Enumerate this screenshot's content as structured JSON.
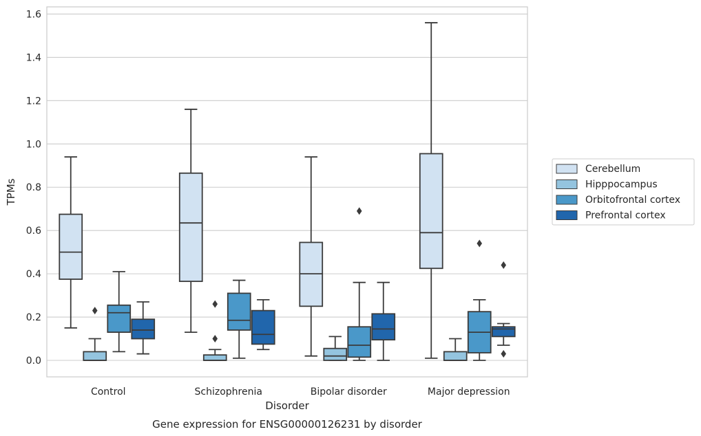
{
  "chart_data": {
    "type": "box",
    "xlabel": "Disorder",
    "ylabel": "TPMs",
    "caption": "Gene expression for ENSG00000126231 by disorder",
    "ylim": [
      -0.075,
      1.65
    ],
    "yticks": [
      0.0,
      0.2,
      0.4,
      0.6,
      0.8,
      1.0,
      1.2,
      1.4,
      1.6
    ],
    "ytick_labels": [
      "0.0",
      "0.2",
      "0.4",
      "0.6",
      "0.8",
      "1.0",
      "1.2",
      "1.4",
      "1.6"
    ],
    "grid": true,
    "legend_position": "right",
    "categories": [
      "Control",
      "Schizophrenia",
      "Bipolar disorder",
      "Major depression"
    ],
    "series": [
      {
        "name": "Cerebellum",
        "color": "#d1e2f2",
        "boxes": [
          {
            "min": 0.15,
            "q1": 0.375,
            "median": 0.5,
            "q3": 0.675,
            "max": 0.94,
            "outliers": []
          },
          {
            "min": 0.13,
            "q1": 0.365,
            "median": 0.635,
            "q3": 0.865,
            "max": 1.16,
            "outliers": []
          },
          {
            "min": 0.02,
            "q1": 0.25,
            "median": 0.4,
            "q3": 0.545,
            "max": 0.94,
            "outliers": []
          },
          {
            "min": 0.01,
            "q1": 0.425,
            "median": 0.59,
            "q3": 0.955,
            "max": 1.56,
            "outliers": []
          }
        ]
      },
      {
        "name": "Hipppocampus",
        "color": "#94c4df",
        "boxes": [
          {
            "min": 0.0,
            "q1": 0.0,
            "median": 0.0,
            "q3": 0.04,
            "max": 0.1,
            "outliers": [
              0.23
            ]
          },
          {
            "min": 0.0,
            "q1": 0.0,
            "median": 0.0,
            "q3": 0.025,
            "max": 0.05,
            "outliers": [
              0.1,
              0.26
            ]
          },
          {
            "min": 0.0,
            "q1": 0.0,
            "median": 0.02,
            "q3": 0.055,
            "max": 0.11,
            "outliers": []
          },
          {
            "min": 0.0,
            "q1": 0.0,
            "median": 0.0,
            "q3": 0.04,
            "max": 0.1,
            "outliers": []
          }
        ]
      },
      {
        "name": "Orbitofrontal cortex",
        "color": "#4a98c9",
        "boxes": [
          {
            "min": 0.04,
            "q1": 0.13,
            "median": 0.22,
            "q3": 0.255,
            "max": 0.41,
            "outliers": []
          },
          {
            "min": 0.01,
            "q1": 0.14,
            "median": 0.185,
            "q3": 0.31,
            "max": 0.37,
            "outliers": []
          },
          {
            "min": 0.0,
            "q1": 0.015,
            "median": 0.07,
            "q3": 0.155,
            "max": 0.36,
            "outliers": [
              0.69
            ]
          },
          {
            "min": 0.0,
            "q1": 0.035,
            "median": 0.13,
            "q3": 0.225,
            "max": 0.28,
            "outliers": [
              0.54
            ]
          }
        ]
      },
      {
        "name": "Prefrontal cortex",
        "color": "#2166ac",
        "boxes": [
          {
            "min": 0.03,
            "q1": 0.1,
            "median": 0.14,
            "q3": 0.19,
            "max": 0.27,
            "outliers": []
          },
          {
            "min": 0.05,
            "q1": 0.075,
            "median": 0.12,
            "q3": 0.23,
            "max": 0.28,
            "outliers": []
          },
          {
            "min": 0.0,
            "q1": 0.095,
            "median": 0.145,
            "q3": 0.215,
            "max": 0.36,
            "outliers": []
          },
          {
            "min": 0.07,
            "q1": 0.11,
            "median": 0.145,
            "q3": 0.155,
            "max": 0.17,
            "outliers": [
              0.03,
              0.44
            ]
          }
        ]
      }
    ]
  }
}
